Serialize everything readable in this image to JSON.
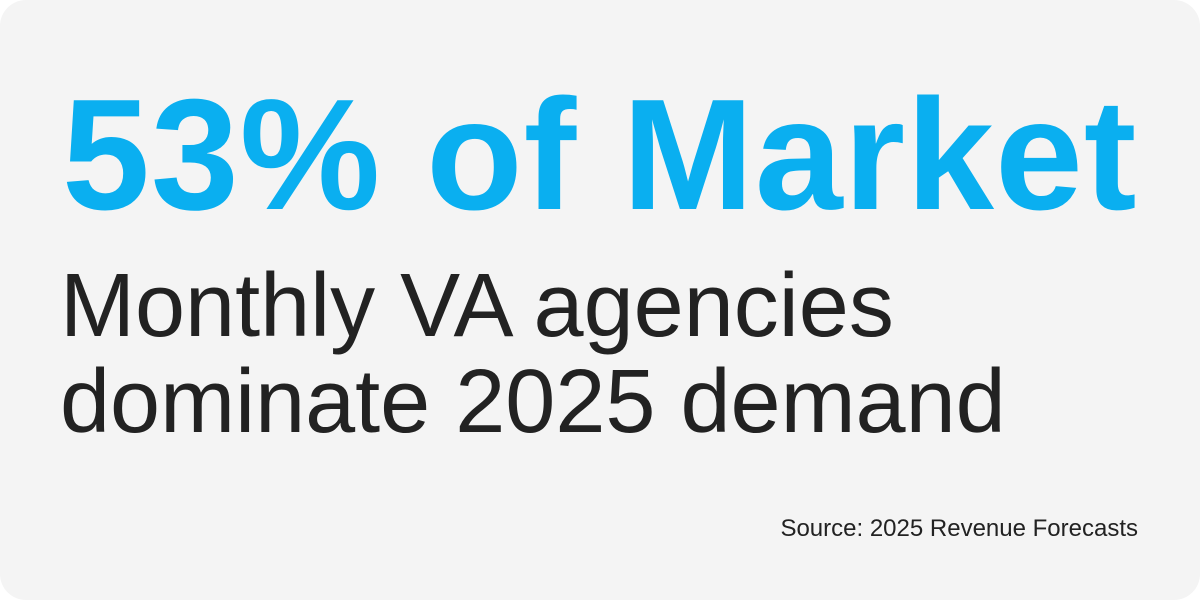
{
  "colors": {
    "accent": "#0aaff0",
    "text": "#222222",
    "background": "#f4f4f4"
  },
  "headline": "53% of Market",
  "subtitle": {
    "line1": "Monthly VA agencies",
    "line2": "dominate 2025 demand"
  },
  "source": "Source: 2025 Revenue Forecasts"
}
